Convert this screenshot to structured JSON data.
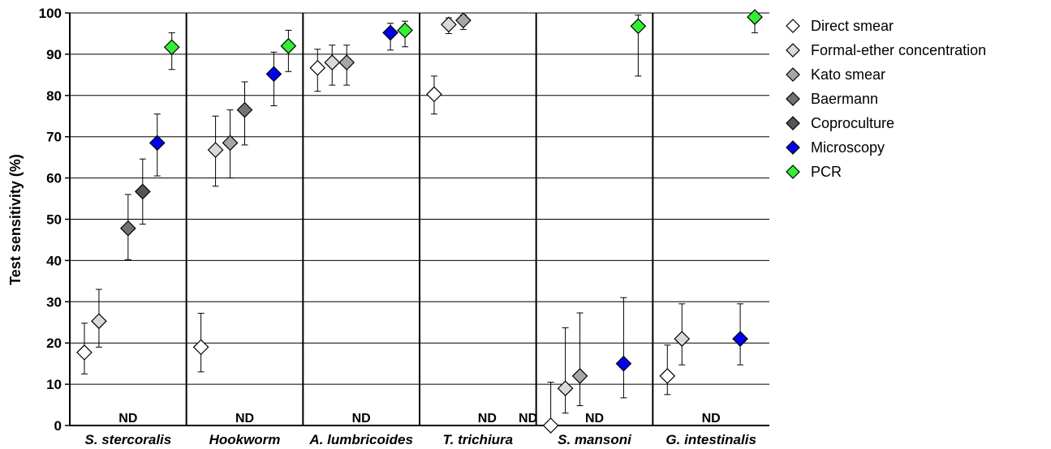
{
  "chart_data": {
    "type": "scatter",
    "ylabel": "Test sensitivity (%)",
    "ylim": [
      0,
      100
    ],
    "yticks": [
      0,
      10,
      20,
      30,
      40,
      50,
      60,
      70,
      80,
      90,
      100
    ],
    "grid": true,
    "legend_position": "right",
    "categories": [
      "S. stercoralis",
      "Hookworm",
      "A. lumbricoides",
      "T. trichiura",
      "S. mansoni",
      "G. intestinalis"
    ],
    "series": [
      {
        "name": "Direct smear",
        "color": "#ffffff",
        "values": [
          17.7,
          19.0,
          86.7,
          80.3,
          0.0,
          12.0
        ],
        "lower": [
          12.5,
          13.0,
          81.0,
          75.5,
          0.0,
          7.5
        ],
        "upper": [
          24.8,
          27.2,
          91.2,
          84.7,
          10.5,
          19.5
        ]
      },
      {
        "name": "Formal-ether concentration",
        "color": "#d9d9d9",
        "values": [
          25.3,
          66.8,
          88.0,
          97.2,
          9.0,
          21.0
        ],
        "lower": [
          19.0,
          58.0,
          82.5,
          95.0,
          3.0,
          14.7
        ],
        "upper": [
          33.0,
          75.0,
          92.2,
          98.8,
          23.7,
          29.5
        ]
      },
      {
        "name": "Kato smear",
        "color": "#a6a6a6",
        "values": [
          null,
          68.5,
          88.0,
          98.2,
          12.0,
          null
        ],
        "lower": [
          null,
          60.0,
          82.5,
          96.0,
          4.8,
          null
        ],
        "upper": [
          null,
          76.5,
          92.2,
          99.5,
          27.3,
          null
        ]
      },
      {
        "name": "Baermann",
        "color": "#737373",
        "values": [
          47.8,
          76.5,
          null,
          null,
          null,
          null
        ],
        "lower": [
          40.2,
          68.0,
          null,
          null,
          null,
          null
        ],
        "upper": [
          56.0,
          83.3,
          null,
          null,
          null,
          null
        ]
      },
      {
        "name": "Coproculture",
        "color": "#555555",
        "values": [
          56.7,
          null,
          null,
          null,
          null,
          null
        ],
        "lower": [
          48.8,
          null,
          null,
          null,
          null,
          null
        ],
        "upper": [
          64.6,
          null,
          null,
          null,
          null,
          null
        ]
      },
      {
        "name": "Microscopy",
        "color": "#0000ee",
        "values": [
          68.5,
          85.2,
          95.2,
          null,
          15.0,
          21.0
        ],
        "lower": [
          60.5,
          77.5,
          91.0,
          null,
          6.7,
          14.7
        ],
        "upper": [
          75.5,
          90.5,
          97.5,
          null,
          31.0,
          29.5
        ]
      },
      {
        "name": "PCR",
        "color": "#33ee33",
        "values": [
          91.7,
          92.0,
          95.8,
          null,
          96.8,
          99.0
        ],
        "lower": [
          86.3,
          85.8,
          91.8,
          null,
          84.7,
          95.2
        ],
        "upper": [
          95.2,
          95.8,
          98.0,
          null,
          99.5,
          100.0
        ]
      }
    ],
    "annotations": [
      {
        "category": "S. stercoralis",
        "text": "ND"
      },
      {
        "category": "Hookworm",
        "text": "ND"
      },
      {
        "category": "A. lumbricoides",
        "text": "ND"
      },
      {
        "category": "T. trichiura",
        "text": "ND"
      },
      {
        "category": "T. trichiura",
        "text": "ND"
      },
      {
        "category": "S. mansoni",
        "text": "ND"
      },
      {
        "category": "G. intestinalis",
        "text": "ND"
      }
    ]
  }
}
